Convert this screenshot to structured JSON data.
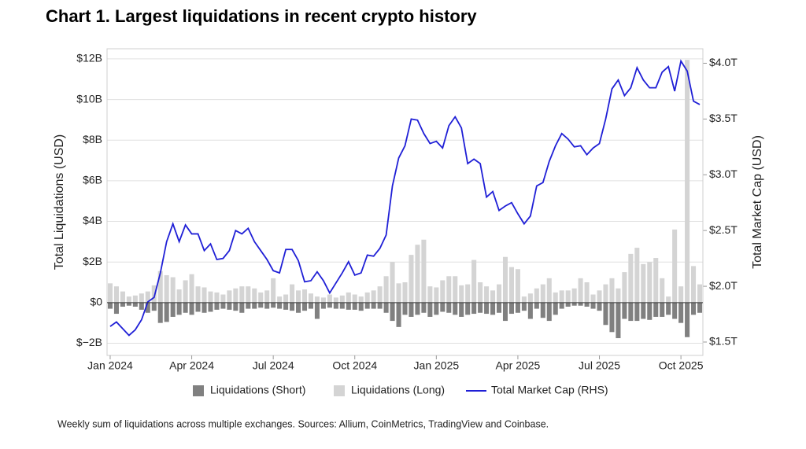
{
  "chart_data": {
    "type": "bar-line",
    "title": "Chart 1. Largest liquidations in recent crypto history",
    "ylabel": "Total Liquidations (USD)",
    "y2label": "Total Market Cap (USD)",
    "note": "Weekly sum of liquidations across multiple exchanges. Sources: Allium, CoinMetrics, TradingView and Coinbase.",
    "categories": [
      "Jan 2024",
      null,
      null,
      null,
      null,
      null,
      null,
      null,
      null,
      null,
      null,
      null,
      null,
      "Apr 2024",
      null,
      null,
      null,
      null,
      null,
      null,
      null,
      null,
      null,
      null,
      null,
      null,
      "Jul 2024",
      null,
      null,
      null,
      null,
      null,
      null,
      null,
      null,
      null,
      null,
      null,
      null,
      "Oct 2024",
      null,
      null,
      null,
      null,
      null,
      null,
      null,
      null,
      null,
      null,
      null,
      null,
      "Jan 2025",
      null,
      null,
      null,
      null,
      null,
      null,
      null,
      null,
      null,
      null,
      null,
      null,
      "Apr 2025",
      null,
      null,
      null,
      null,
      null,
      null,
      null,
      null,
      null,
      null,
      null,
      null,
      "Jul 2025",
      null,
      null,
      null,
      null,
      null,
      null,
      null,
      null,
      null,
      null,
      null,
      null,
      "Oct 2025",
      null,
      null,
      null
    ],
    "ylim": [
      -2.6,
      12.5
    ],
    "yticks": [
      {
        "value": -2,
        "label": "$−2B"
      },
      {
        "value": 0,
        "label": "$0"
      },
      {
        "value": 2,
        "label": "$2B"
      },
      {
        "value": 4,
        "label": "$4B"
      },
      {
        "value": 6,
        "label": "$6B"
      },
      {
        "value": 8,
        "label": "$8B"
      },
      {
        "value": 10,
        "label": "$10B"
      },
      {
        "value": 12,
        "label": "$12B"
      }
    ],
    "y2lim": [
      1.38,
      4.13
    ],
    "y2ticks": [
      {
        "value": 1.5,
        "label": "$1.5T"
      },
      {
        "value": 2.0,
        "label": "$2.0T"
      },
      {
        "value": 2.5,
        "label": "$2.5T"
      },
      {
        "value": 3.0,
        "label": "$3.0T"
      },
      {
        "value": 3.5,
        "label": "$3.5T"
      },
      {
        "value": 4.0,
        "label": "$4.0T"
      }
    ],
    "grid": true,
    "legend": "bottom",
    "series": [
      {
        "name": "Liquidations (Short)",
        "type": "bar",
        "color": "#808080",
        "values": [
          -0.3,
          -0.55,
          -0.2,
          -0.15,
          -0.2,
          -0.35,
          -0.5,
          -0.4,
          -1.0,
          -0.95,
          -0.7,
          -0.6,
          -0.5,
          -0.6,
          -0.45,
          -0.5,
          -0.45,
          -0.35,
          -0.3,
          -0.35,
          -0.4,
          -0.5,
          -0.3,
          -0.3,
          -0.25,
          -0.3,
          -0.25,
          -0.3,
          -0.35,
          -0.4,
          -0.5,
          -0.4,
          -0.3,
          -0.8,
          -0.3,
          -0.25,
          -0.3,
          -0.3,
          -0.35,
          -0.35,
          -0.4,
          -0.3,
          -0.3,
          -0.3,
          -0.5,
          -0.9,
          -1.2,
          -0.6,
          -0.7,
          -0.6,
          -0.5,
          -0.7,
          -0.6,
          -0.45,
          -0.5,
          -0.6,
          -0.7,
          -0.6,
          -0.55,
          -0.5,
          -0.55,
          -0.6,
          -0.5,
          -0.9,
          -0.55,
          -0.5,
          -0.4,
          -0.8,
          -0.3,
          -0.75,
          -0.9,
          -0.6,
          -0.3,
          -0.2,
          -0.15,
          -0.15,
          -0.2,
          -0.3,
          -0.4,
          -1.1,
          -1.45,
          -1.75,
          -0.8,
          -0.9,
          -0.9,
          -0.8,
          -0.85,
          -0.7,
          -0.7,
          -0.6,
          -0.8,
          -1.0,
          -1.7,
          -0.6,
          -0.5
        ]
      },
      {
        "name": "Liquidations (Long)",
        "type": "bar",
        "color": "#d4d4d4",
        "values": [
          0.95,
          0.8,
          0.55,
          0.3,
          0.35,
          0.45,
          0.55,
          0.85,
          1.55,
          1.35,
          1.25,
          0.65,
          1.1,
          1.4,
          0.8,
          0.75,
          0.55,
          0.5,
          0.4,
          0.6,
          0.7,
          0.8,
          0.8,
          0.7,
          0.5,
          0.6,
          1.2,
          0.3,
          0.4,
          0.9,
          0.6,
          0.65,
          0.45,
          0.3,
          0.25,
          0.4,
          0.25,
          0.35,
          0.5,
          0.4,
          0.3,
          0.5,
          0.6,
          0.8,
          1.3,
          2.0,
          0.95,
          1.0,
          2.35,
          2.85,
          3.1,
          0.8,
          0.75,
          1.1,
          1.3,
          1.3,
          0.85,
          0.9,
          2.1,
          1.0,
          0.8,
          0.6,
          0.9,
          2.25,
          1.75,
          1.65,
          0.3,
          0.45,
          0.7,
          0.9,
          1.2,
          0.5,
          0.6,
          0.6,
          0.7,
          1.2,
          1.0,
          0.4,
          0.6,
          0.9,
          1.2,
          0.7,
          1.5,
          2.4,
          2.7,
          1.9,
          2.0,
          2.2,
          1.2,
          0.3,
          3.6,
          0.8,
          11.95,
          1.8,
          0.9
        ]
      },
      {
        "name": "Total Market Cap (RHS)",
        "type": "line",
        "axis": "y2",
        "color": "#1f1fd6",
        "values": [
          1.64,
          1.68,
          1.62,
          1.56,
          1.61,
          1.7,
          1.86,
          1.9,
          2.12,
          2.4,
          2.56,
          2.4,
          2.55,
          2.47,
          2.47,
          2.32,
          2.38,
          2.24,
          2.25,
          2.32,
          2.5,
          2.47,
          2.52,
          2.4,
          2.32,
          2.24,
          2.14,
          2.12,
          2.33,
          2.33,
          2.23,
          2.04,
          2.05,
          2.13,
          2.05,
          1.94,
          2.03,
          2.12,
          2.22,
          2.1,
          2.12,
          2.28,
          2.27,
          2.34,
          2.46,
          2.9,
          3.15,
          3.26,
          3.5,
          3.49,
          3.37,
          3.28,
          3.3,
          3.24,
          3.44,
          3.52,
          3.42,
          3.1,
          3.14,
          3.1,
          2.8,
          2.85,
          2.68,
          2.72,
          2.75,
          2.65,
          2.56,
          2.63,
          2.9,
          2.93,
          3.12,
          3.26,
          3.37,
          3.32,
          3.25,
          3.26,
          3.18,
          3.24,
          3.28,
          3.5,
          3.77,
          3.85,
          3.71,
          3.78,
          3.96,
          3.85,
          3.78,
          3.78,
          3.92,
          3.97,
          3.75,
          4.02,
          3.93,
          3.66,
          3.63
        ]
      }
    ]
  }
}
